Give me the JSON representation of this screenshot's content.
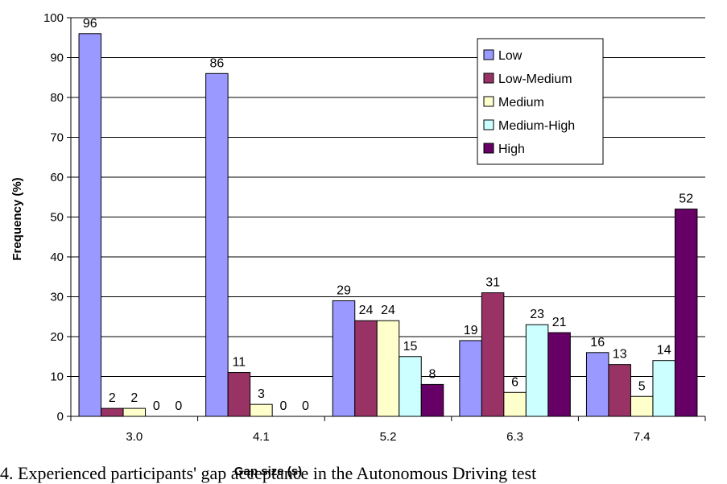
{
  "chart_data": {
    "type": "bar",
    "categories": [
      "3.0",
      "4.1",
      "5.2",
      "6.3",
      "7.4"
    ],
    "series": [
      {
        "name": "Low",
        "values": [
          96,
          86,
          29,
          19,
          16
        ],
        "color": "#9999ff"
      },
      {
        "name": "Low-Medium",
        "values": [
          2,
          11,
          24,
          31,
          13
        ],
        "color": "#993366"
      },
      {
        "name": "Medium",
        "values": [
          2,
          3,
          24,
          6,
          5
        ],
        "color": "#ffffcc"
      },
      {
        "name": "Medium-High",
        "values": [
          0,
          0,
          15,
          23,
          14
        ],
        "color": "#ccffff"
      },
      {
        "name": "High",
        "values": [
          0,
          0,
          8,
          21,
          52
        ],
        "color": "#660066"
      }
    ],
    "xlabel": "Gap size (s)",
    "ylabel": "Frequency (%)",
    "ylim": [
      0,
      100
    ],
    "yticks": [
      "0",
      "10",
      "20",
      "30",
      "40",
      "50",
      "60",
      "70",
      "80",
      "90",
      "100"
    ],
    "grid": true,
    "legend_position": "top-right"
  },
  "caption": "4. Experienced participants' gap acceptance in the Autonomous Driving test"
}
